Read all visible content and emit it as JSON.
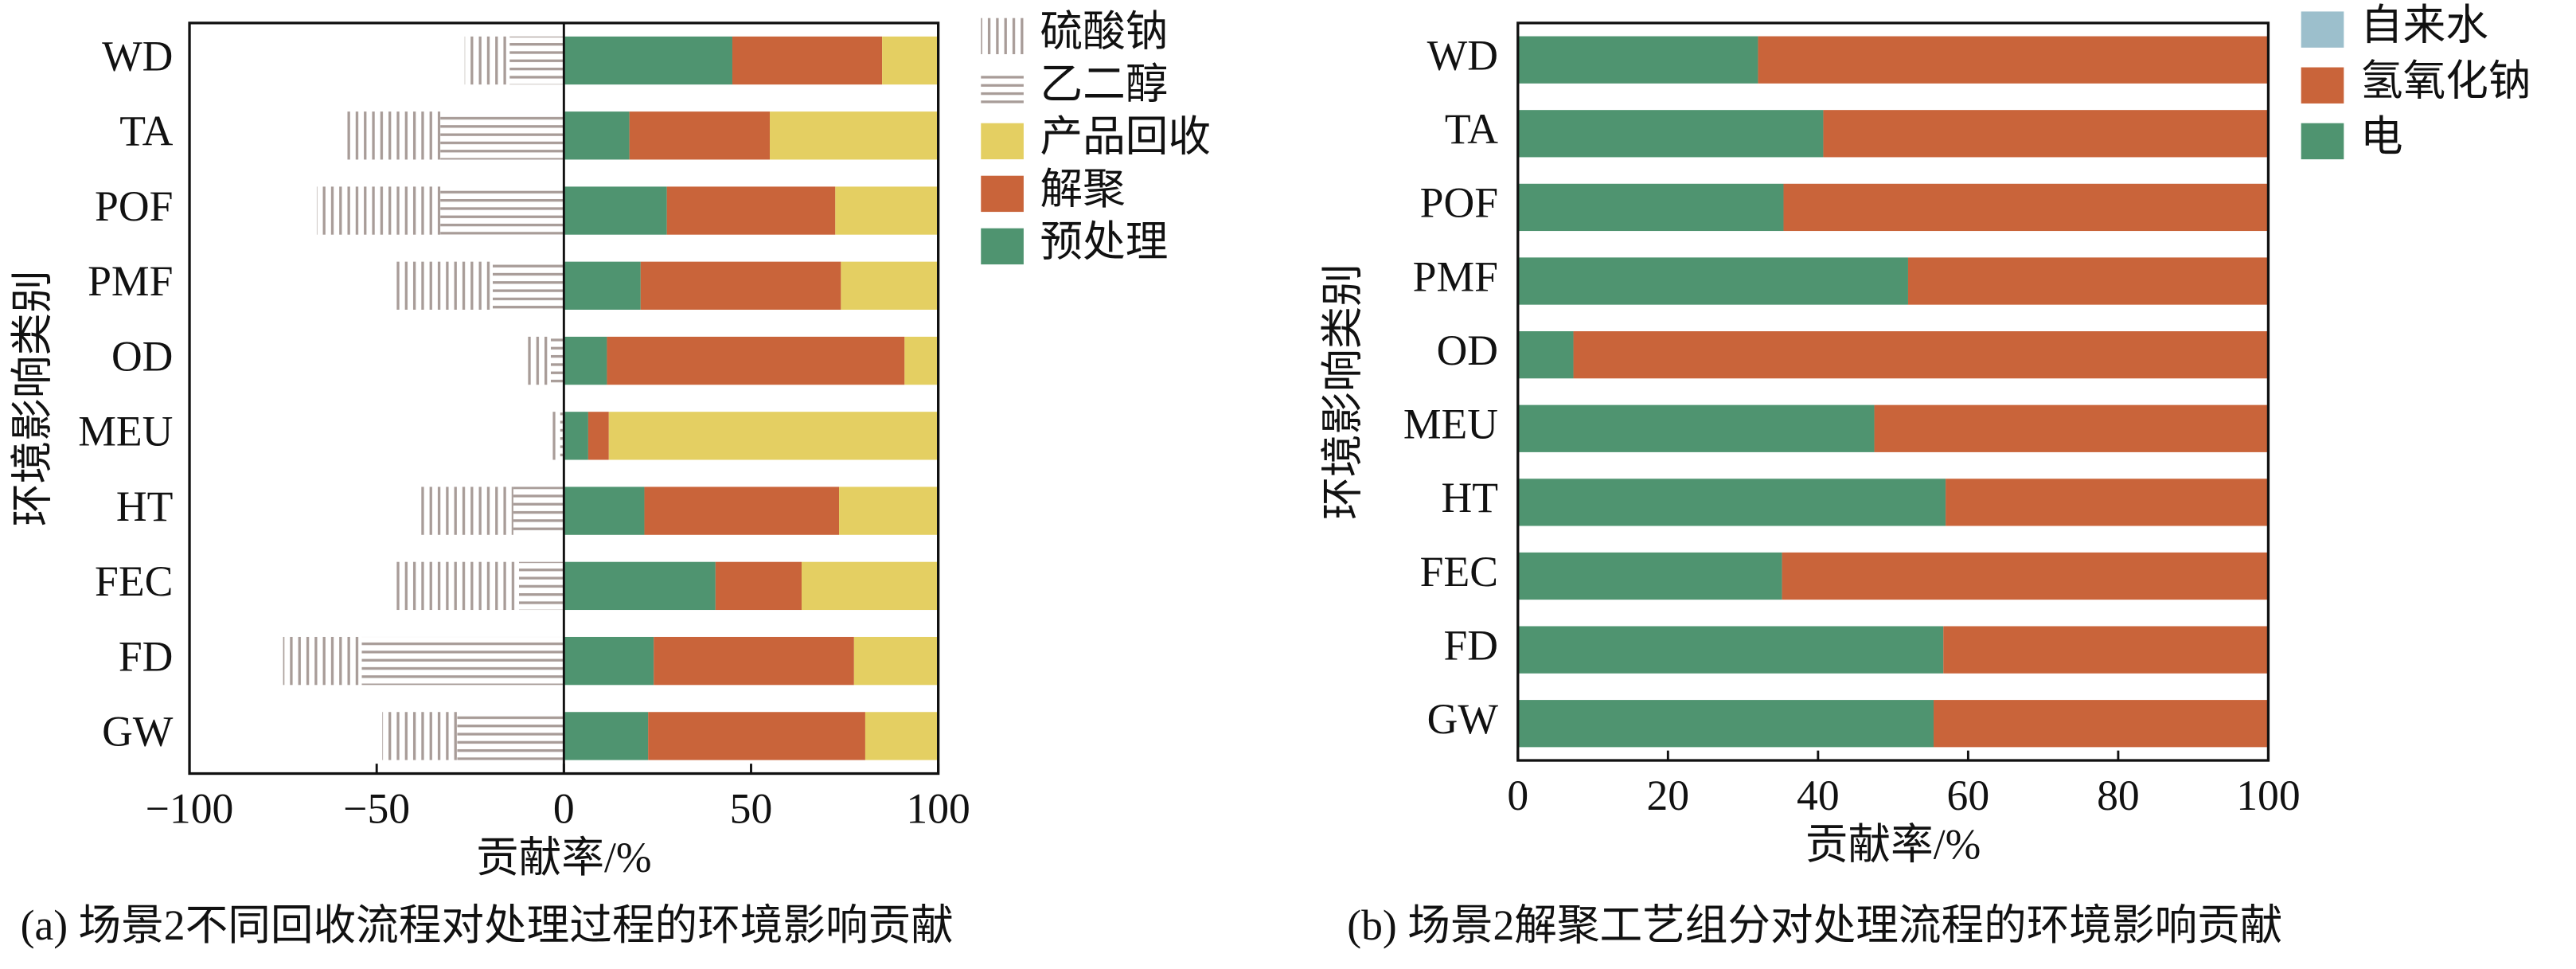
{
  "chart_data": [
    {
      "type": "stacked_barh",
      "caption": "(a) 场景2不同回收流程对处理过程的环境影响贡献",
      "xlabel": "贡献率/%",
      "ylabel": "环境影响类别",
      "categories": [
        "WD",
        "TA",
        "POF",
        "PMF",
        "OD",
        "MEU",
        "HT",
        "FEC",
        "FD",
        "GW"
      ],
      "series": [
        {
          "name": "预处理",
          "color": "#4f9470",
          "values": [
            45,
            17.5,
            27.5,
            20.5,
            11.5,
            6.5,
            21.5,
            40.5,
            24,
            22.5
          ]
        },
        {
          "name": "解聚",
          "color": "#c9643a",
          "values": [
            40,
            37.5,
            45,
            53.5,
            79.5,
            5.5,
            52,
            23,
            53.5,
            58
          ]
        },
        {
          "name": "产品回收",
          "color": "#e4cf62",
          "values": [
            15,
            45,
            27.5,
            26,
            9,
            88,
            26.5,
            36.5,
            22.5,
            19.5
          ]
        },
        {
          "name": "乙二醇",
          "color": "#a89c98",
          "hatch": "horizontal",
          "values": [
            -14.5,
            -33,
            -33,
            -19,
            -3.5,
            -1,
            -13.5,
            -12,
            -54,
            -28.5
          ]
        },
        {
          "name": "硫酸钠",
          "color": "#a89c98",
          "hatch": "vertical",
          "values": [
            -12,
            -25,
            -33,
            -26,
            -7.5,
            -2,
            -26,
            -34,
            -21,
            -20
          ]
        }
      ],
      "xlim": [
        -100,
        100
      ],
      "xticks": [
        {
          "value": -100,
          "label": "−100"
        },
        {
          "value": -50,
          "label": "−50"
        },
        0,
        50,
        100
      ]
    },
    {
      "type": "stacked_barh",
      "caption": "(b) 场景2解聚工艺组分对处理流程的环境影响贡献",
      "xlabel": "贡献率/%",
      "ylabel": "环境影响类别",
      "categories": [
        "WD",
        "TA",
        "POF",
        "PMF",
        "OD",
        "MEU",
        "HT",
        "FEC",
        "FD",
        "GW"
      ],
      "series": [
        {
          "name": "电",
          "color": "#4f9470",
          "values": [
            32,
            40.7,
            35.4,
            52,
            7.4,
            47.5,
            57,
            35.2,
            56.7,
            55.4
          ]
        },
        {
          "name": "氢氧化钠",
          "color": "#c9643a",
          "values": [
            68,
            59.3,
            64.6,
            48,
            92.6,
            52.5,
            43,
            64.8,
            43.3,
            44.6
          ]
        },
        {
          "name": "自来水",
          "color": "#9cbfcc",
          "values": [
            0,
            0,
            0,
            0,
            0,
            0,
            0,
            0,
            0,
            0
          ]
        }
      ],
      "xlim": [
        0,
        100
      ],
      "xticks": [
        0,
        20,
        40,
        60,
        80,
        100
      ]
    }
  ]
}
